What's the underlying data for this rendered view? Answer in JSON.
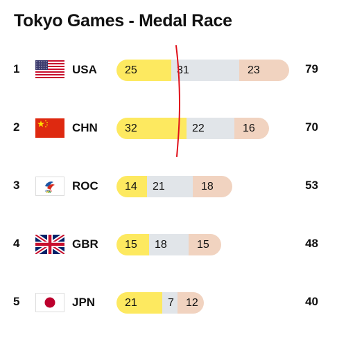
{
  "title": "Tokyo Games - Medal Race",
  "colors": {
    "gold": "#fde960",
    "silver": "#e1e5e9",
    "bronze": "#f1d3c0",
    "annotation": "#e0101a"
  },
  "chart_data": {
    "type": "bar",
    "orientation": "horizontal-stacked",
    "categories": [
      "USA",
      "CHN",
      "ROC",
      "GBR",
      "JPN"
    ],
    "ranks": [
      "1",
      "2",
      "3",
      "4",
      "5"
    ],
    "series": [
      {
        "values": [
          25,
          32,
          14,
          15,
          21
        ]
      },
      {
        "values": [
          31,
          22,
          21,
          18,
          7
        ]
      },
      {
        "values": [
          23,
          16,
          18,
          15,
          12
        ]
      }
    ],
    "totals": [
      79,
      70,
      53,
      48,
      40
    ],
    "grid": false,
    "legend": "none"
  }
}
